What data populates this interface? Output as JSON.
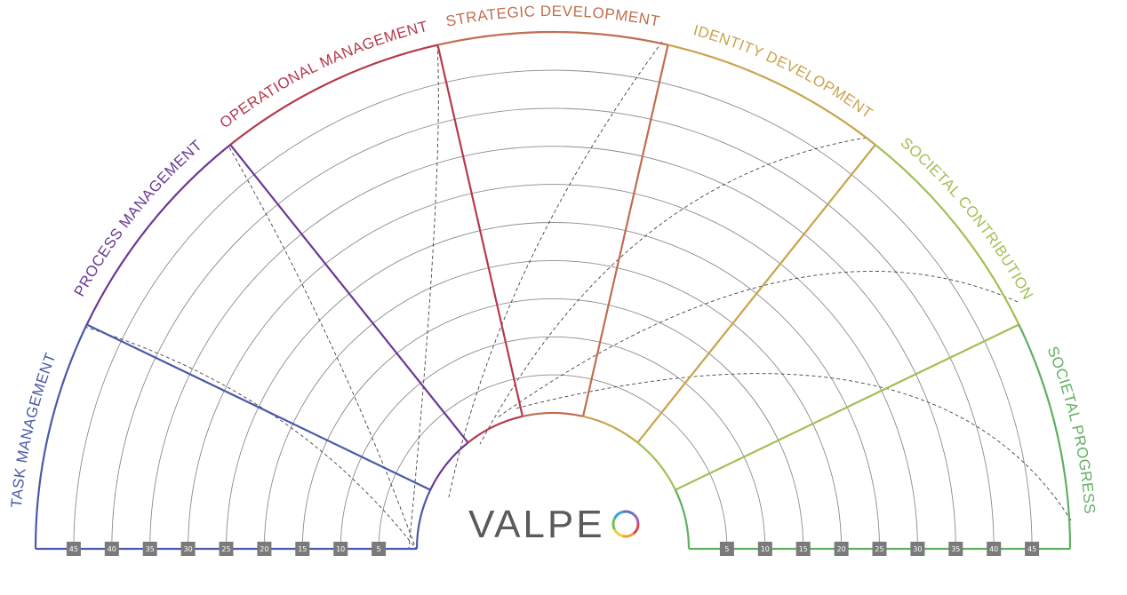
{
  "diagram": {
    "segments": [
      {
        "label": "TASK MANAGEMENT",
        "color": "#4a5aa8"
      },
      {
        "label": "PROCESS MANAGEMENT",
        "color": "#6a3a93"
      },
      {
        "label": "OPERATIONAL MANAGEMENT",
        "color": "#b53a4d"
      },
      {
        "label": "STRATEGIC DEVELOPMENT",
        "color": "#c06e4f"
      },
      {
        "label": "IDENTITY DEVELOPMENT",
        "color": "#c9a44e"
      },
      {
        "label": "SOCIETAL CONTRIBUTION",
        "color": "#a2bf55"
      },
      {
        "label": "SOCIETAL PROGRESS",
        "color": "#5fb060"
      }
    ],
    "left_ticks": [
      "45",
      "40",
      "35",
      "30",
      "25",
      "20",
      "15",
      "10",
      "5"
    ],
    "right_ticks": [
      "5",
      "10",
      "15",
      "20",
      "25",
      "30",
      "35",
      "40",
      "45"
    ],
    "logo": "VALPE"
  }
}
